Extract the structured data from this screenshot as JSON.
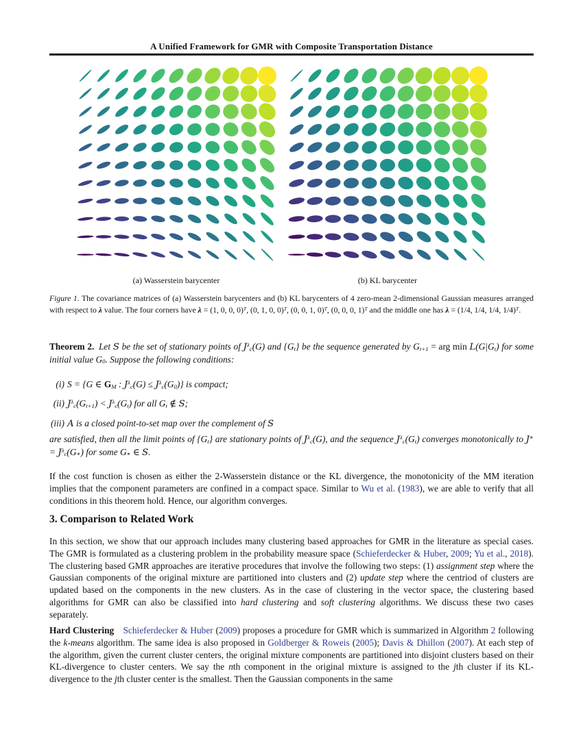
{
  "page": {
    "background": "#ffffff"
  },
  "header": {
    "title": "A Unified Framework for GMR with Composite Transportation Distance",
    "rule_color": "#111111"
  },
  "colors": {
    "citation_blue": "#2c3e94",
    "text": "#141414"
  },
  "figure": {
    "name": "figure-1",
    "subcaptions": [
      "(a) Wasserstein barycenter",
      "(b) KL barycenter"
    ],
    "panels": [
      {
        "key": "wasserstein",
        "label": "(a) Wasserstein barycenter"
      },
      {
        "key": "kl",
        "label": "(b) KL barycenter"
      }
    ],
    "grid_rows": 11,
    "grid_cols": 11,
    "corner_lambda_labels": [
      "(1,0,0,0)T",
      "(0,1,0,0)T",
      "(0,0,1,0)T",
      "(0,0,0,1)T"
    ],
    "middle_lambda_label": "(1/4,1/4,1/4,1/4)T",
    "corner_shapes": {
      "top_left": {
        "angle_deg": 45,
        "major": 0.85,
        "minor": 0.008
      },
      "top_right": {
        "angle_deg": 0,
        "major": 1.0,
        "minor": 1.0
      },
      "bottom_left": {
        "angle_deg": 0,
        "major": 0.85,
        "minor": 0.008
      },
      "bottom_right": {
        "angle_deg": -45,
        "major": 0.85,
        "minor": 0.008
      }
    },
    "colormap": {
      "name": "viridis",
      "stops": [
        "#440154",
        "#482475",
        "#414487",
        "#355f8d",
        "#2a788e",
        "#21918c",
        "#22a884",
        "#44bf70",
        "#7ad151",
        "#bddf26",
        "#fde725"
      ]
    },
    "caption": [
      [
        "Figure 1.",
        "i"
      ],
      [
        " The covariance matrices of (a) Wasserstein barycenters and (b) KL barycenters of 4 zero-mean 2-dimensional Gaussian measures arranged with respect to ",
        ""
      ],
      [
        "λ",
        "bi"
      ],
      [
        " value. The four corners have ",
        ""
      ],
      [
        "λ",
        "bi"
      ],
      [
        " = (1, 0, 0, 0)",
        ""
      ],
      [
        "T",
        "sup"
      ],
      [
        ", (0, 1, 0, 0)",
        ""
      ],
      [
        "T",
        "sup"
      ],
      [
        ", (0, 0, 1, 0)",
        ""
      ],
      [
        "T",
        "sup"
      ],
      [
        ", (0, 0, 0, 1)",
        ""
      ],
      [
        "T",
        "sup"
      ],
      [
        " and the middle one has ",
        ""
      ],
      [
        "λ",
        "bi"
      ],
      [
        " = (1/4, 1/4, 1/4, 1/4)",
        ""
      ],
      [
        "T",
        "sup"
      ],
      [
        ".",
        ""
      ]
    ]
  },
  "theorem": {
    "segments": [
      [
        "Theorem 2.",
        "b"
      ],
      [
        " Let ",
        "i"
      ],
      [
        "S",
        "scr"
      ],
      [
        " be the set of stationary points of ",
        "i"
      ],
      [
        "J",
        "scr"
      ],
      [
        "λ",
        "sup"
      ],
      [
        "c",
        "sub"
      ],
      [
        "(G)",
        "i"
      ],
      [
        " and {G",
        "i"
      ],
      [
        "t",
        "sub"
      ],
      [
        "} be the sequence generated by G",
        "i"
      ],
      [
        "t+1",
        "sub"
      ],
      [
        " = arg min ",
        ""
      ],
      [
        "L",
        "scr"
      ],
      [
        "(G|G",
        "i"
      ],
      [
        "t",
        "sub"
      ],
      [
        ") for some initial value G",
        "i"
      ],
      [
        "0",
        "sub"
      ],
      [
        ". Suppose the following conditions:",
        "i"
      ]
    ]
  },
  "conditions": [
    {
      "label": "(i)",
      "segments": [
        [
          "S",
          "i"
        ],
        [
          " = {G ∈ ",
          "i"
        ],
        [
          "G",
          "bb"
        ],
        [
          "M",
          "sub"
        ],
        [
          " : ",
          "i"
        ],
        [
          "J",
          "scr"
        ],
        [
          "λ",
          "sup"
        ],
        [
          "c",
          "sub"
        ],
        [
          "(G) ≤ ",
          "i"
        ],
        [
          "J",
          "scr"
        ],
        [
          "λ",
          "sup"
        ],
        [
          "c",
          "sub"
        ],
        [
          "(G",
          "i"
        ],
        [
          "0",
          "sub"
        ],
        [
          ")} is compact;",
          "i"
        ]
      ]
    },
    {
      "label": "(ii)",
      "segments": [
        [
          "J",
          "scr"
        ],
        [
          "λ",
          "sup"
        ],
        [
          "c",
          "sub"
        ],
        [
          "(G",
          "i"
        ],
        [
          "t+1",
          "sub"
        ],
        [
          ") < ",
          "i"
        ],
        [
          "J",
          "scr"
        ],
        [
          "λ",
          "sup"
        ],
        [
          "c",
          "sub"
        ],
        [
          "(G",
          "i"
        ],
        [
          "t",
          "sub"
        ],
        [
          ") for all G",
          "i"
        ],
        [
          "t",
          "sub"
        ],
        [
          " ∉ ",
          "i"
        ],
        [
          "S",
          "scr"
        ],
        [
          ";",
          "i"
        ]
      ]
    },
    {
      "label": "(iii)",
      "segments": [
        [
          "A",
          "scr"
        ],
        [
          " is a closed point-to-set map over the complement of ",
          "i"
        ],
        [
          "S",
          "scr"
        ]
      ]
    }
  ],
  "theorem_after": {
    "segments": [
      [
        "are satisfied, then all the limit points of {G",
        "i"
      ],
      [
        "t",
        "sub"
      ],
      [
        "} are stationary points of ",
        "i"
      ],
      [
        "J",
        "scr"
      ],
      [
        "λ",
        "sup"
      ],
      [
        "c",
        "sub"
      ],
      [
        "(G), and the sequence ",
        "i"
      ],
      [
        "J",
        "scr"
      ],
      [
        "λ",
        "sup"
      ],
      [
        "c",
        "sub"
      ],
      [
        "(G",
        "i"
      ],
      [
        "t",
        "sub"
      ],
      [
        ") converges monotonically to ",
        "i"
      ],
      [
        "J",
        "scr"
      ],
      [
        "∗",
        "sup"
      ],
      [
        " = ",
        "i"
      ],
      [
        "J",
        "scr"
      ],
      [
        "λ",
        "sup"
      ],
      [
        "c",
        "sub"
      ],
      [
        "(G",
        "i"
      ],
      [
        "∗",
        "sub"
      ],
      [
        ") for some G",
        "i"
      ],
      [
        "∗",
        "sub"
      ],
      [
        " ∈ ",
        "i"
      ],
      [
        "S",
        "scr"
      ],
      [
        ".",
        "i"
      ]
    ]
  },
  "section_heading": {
    "label": "3. Comparison to Related Work"
  },
  "paragraphs": {
    "convergence": {
      "segments": [
        [
          "If the cost function is chosen as either the 2-Wasserstein distance or the KL divergence, the monotonicity of the MM iteration implies that the component parameters are confined in a compact space. Similar to ",
          ""
        ],
        [
          "Wu et al.",
          "c"
        ],
        [
          " (",
          ""
        ],
        [
          "1983",
          "c"
        ],
        [
          "), we are able to verify that all conditions in this theorem hold. Hence, our algorithm converges.",
          ""
        ]
      ]
    },
    "section3_intro": {
      "segments": [
        [
          "In this section, we show that our approach includes many clustering based approaches for GMR in the literature as special cases. The GMR is formulated as a clustering problem in the probability measure space (",
          ""
        ],
        [
          "Schieferdecker & Huber",
          "c"
        ],
        [
          ", ",
          ""
        ],
        [
          "2009",
          "c"
        ],
        [
          "; ",
          ""
        ],
        [
          "Yu et al.",
          "c"
        ],
        [
          ", ",
          ""
        ],
        [
          "2018",
          "c"
        ],
        [
          "). The clustering based GMR approaches are iterative procedures that involve the following two steps: (1) ",
          ""
        ],
        [
          "assignment step",
          "i"
        ],
        [
          " where the Gaussian components of the original mixture are partitioned into clusters and (2) ",
          ""
        ],
        [
          "update step",
          "i"
        ],
        [
          " where the centriod of clusters are updated based on the components in the new clusters. As in the case of clustering in the vector space, the clustering based algorithms for GMR can also be classified into ",
          ""
        ],
        [
          "hard clustering",
          "i"
        ],
        [
          " and ",
          ""
        ],
        [
          "soft clustering",
          "i"
        ],
        [
          " algorithms. We discuss these two cases separately.",
          ""
        ]
      ]
    },
    "hard_clustering": {
      "segments": [
        [
          "Hard Clustering",
          "b"
        ],
        [
          " ",
          ""
        ],
        [
          "Schieferdecker & Huber",
          "c"
        ],
        [
          " (",
          ""
        ],
        [
          "2009",
          "c"
        ],
        [
          ") proposes a procedure for GMR which is summarized in Algorithm ",
          ""
        ],
        [
          "2",
          "c"
        ],
        [
          " following the ",
          ""
        ],
        [
          "k-means",
          "i"
        ],
        [
          " algorithm. The same idea is also proposed in ",
          ""
        ],
        [
          "Goldberger & Roweis",
          "c"
        ],
        [
          " (",
          ""
        ],
        [
          "2005",
          "c"
        ],
        [
          "); ",
          ""
        ],
        [
          "Davis & Dhillon",
          "c"
        ],
        [
          " (",
          ""
        ],
        [
          "2007",
          "c"
        ],
        [
          "). At each step of the algorithm, given the current cluster centers, the original mixture components are partitioned into disjoint clusters based on their KL-divergence to cluster centers. We say the ",
          ""
        ],
        [
          "n",
          "i"
        ],
        [
          "th component in the original mixture is assigned to the ",
          ""
        ],
        [
          "j",
          "i"
        ],
        [
          "th cluster if its KL-divergence to the ",
          ""
        ],
        [
          "j",
          "i"
        ],
        [
          "th cluster center is the smallest. Then the Gaussian components in the same",
          ""
        ]
      ]
    }
  }
}
